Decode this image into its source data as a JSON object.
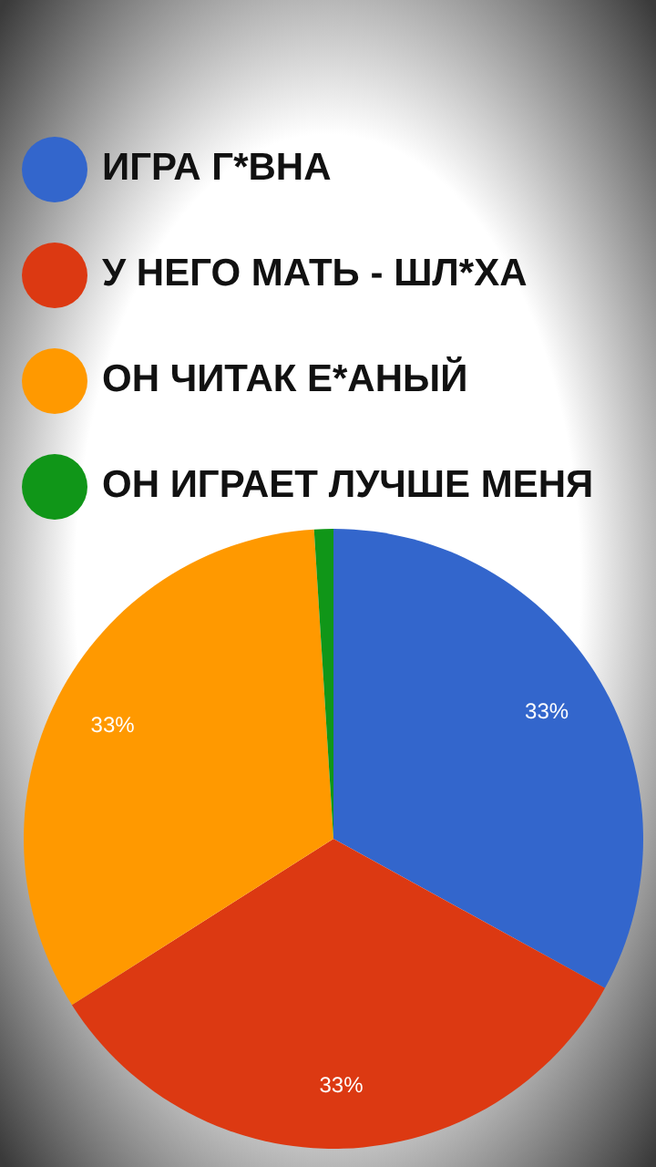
{
  "chart_data": {
    "type": "pie",
    "categories": [
      "ИГРА Г*ВНА",
      "У НЕГО МАТЬ - ШЛ*ХА",
      "ОН ЧИТАК Е*АНЫЙ",
      "ОН ИГРАЕТ ЛУЧШЕ МЕНЯ"
    ],
    "values": [
      33,
      33,
      33,
      1
    ],
    "colors": [
      "#3366cc",
      "#dc3912",
      "#ff9900",
      "#109618"
    ],
    "value_labels": [
      "33%",
      "33%",
      "33%",
      null
    ],
    "legend": "top"
  }
}
